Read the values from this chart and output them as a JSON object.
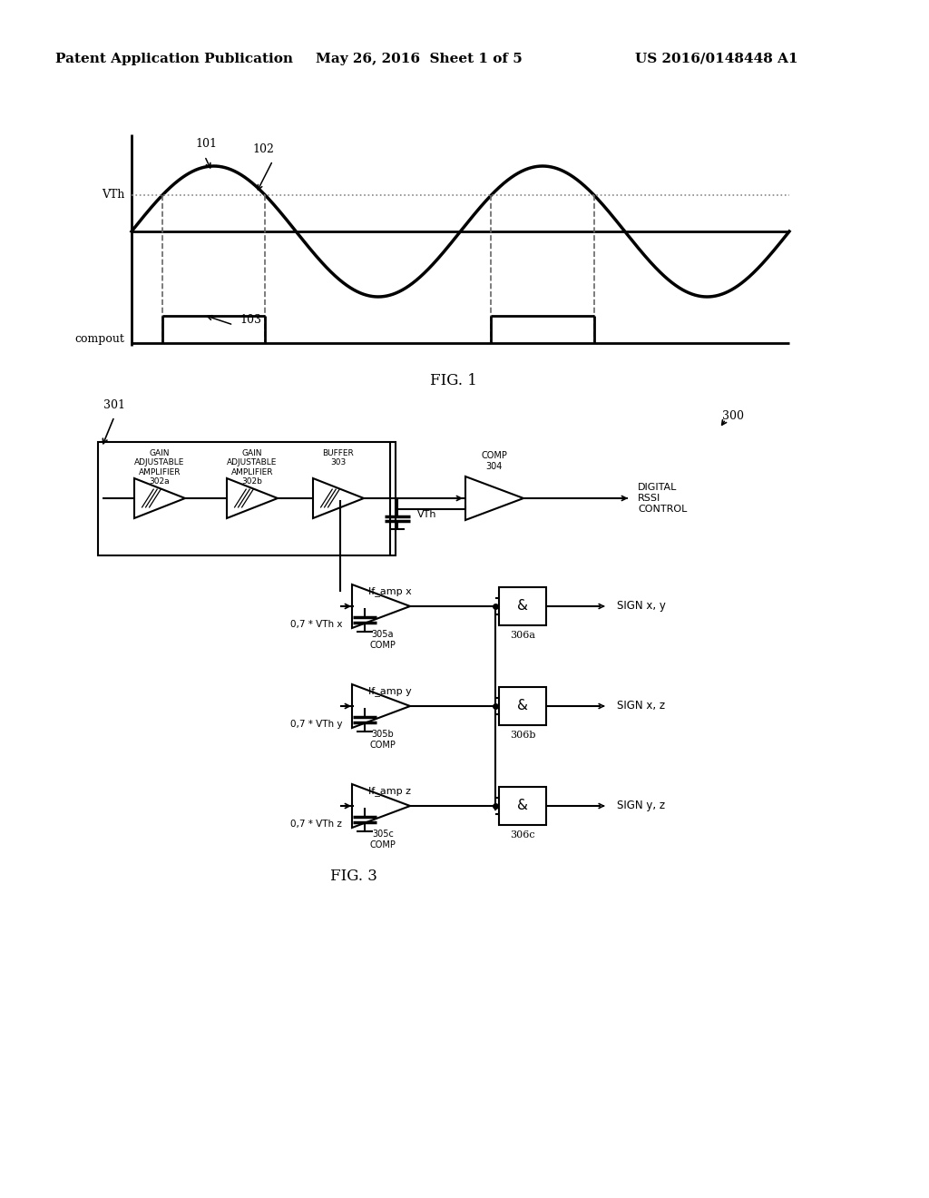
{
  "bg_color": "#ffffff",
  "header_left": "Patent Application Publication",
  "header_mid": "May 26, 2016  Sheet 1 of 5",
  "header_right": "US 2016/0148448 A1",
  "fig1_label": "FIG. 1",
  "fig3_label": "FIG. 3",
  "vth_label": "VTh",
  "compout_label": "compout",
  "label_101": "101",
  "label_102": "102",
  "label_103": "103",
  "label_300": "300",
  "label_301": "301",
  "label_digital": "DIGITAL\nRSSI\nCONTROL",
  "label_if_amp_x": "If_amp x",
  "label_if_amp_y": "If_amp y",
  "label_if_amp_z": "If_amp z",
  "label_vth_box": "VTh",
  "label_07vthx": "0,7 * VTh x",
  "label_07vthy": "0,7 * VTh y",
  "label_07vthz": "0,7 * VTh z",
  "label_sign_xy": "SIGN x, y",
  "label_sign_xz": "SIGN x, z",
  "label_sign_yz": "SIGN y, z",
  "label_305a": "305a\nCOMP",
  "label_305b": "305b\nCOMP",
  "label_305c": "305c\nCOMP",
  "label_306a": "306a",
  "label_306b": "306b",
  "label_306c": "306c"
}
